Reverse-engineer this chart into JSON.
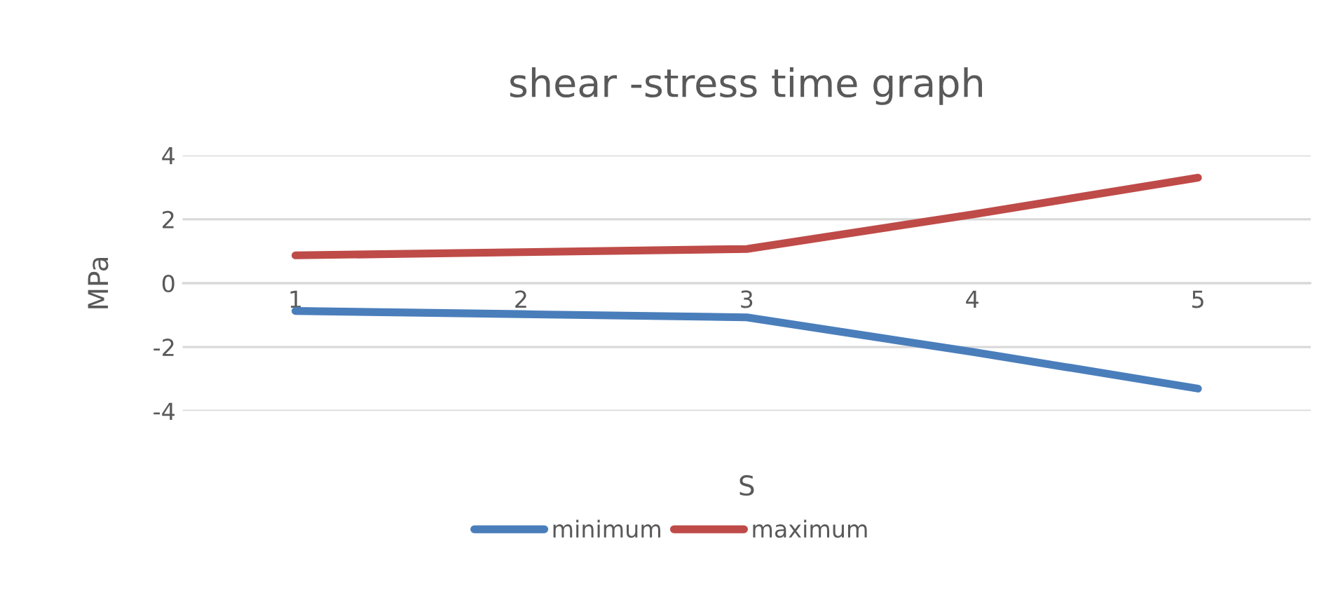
{
  "chart_data": {
    "type": "line",
    "title": "shear -stress time graph",
    "xlabel": "S",
    "ylabel": "MPa",
    "categories": [
      "1",
      "2",
      "3",
      "4",
      "5"
    ],
    "series": [
      {
        "name": "minimum",
        "color": "#4a7ebb",
        "values": [
          -0.87,
          -0.97,
          -1.07,
          -2.15,
          -3.3
        ]
      },
      {
        "name": "maximum",
        "color": "#be4b48",
        "values": [
          0.87,
          0.97,
          1.07,
          2.15,
          3.3
        ]
      }
    ],
    "ylim": [
      -4,
      4
    ],
    "yticks": [
      -4,
      -2,
      0,
      2,
      4
    ],
    "grid": "y",
    "legend": "bottom",
    "marker": "none",
    "line_style": "solid"
  }
}
